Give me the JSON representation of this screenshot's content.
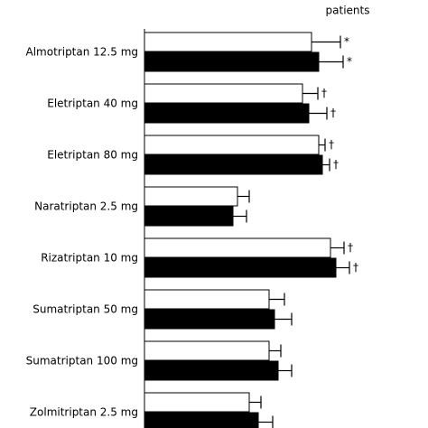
{
  "chart_data": {
    "type": "hbar",
    "subtitle": "patients",
    "categories": [
      "Almotriptan 12.5 mg",
      "Eletriptan 40 mg",
      "Eletriptan 80 mg",
      "Naratriptan 2.5 mg",
      "Rizatriptan 10 mg",
      "Sumatriptan 50 mg",
      "Sumatriptan 100 mg",
      "Zolmitriptan 2.5 mg"
    ],
    "xlim": [
      0,
      314
    ],
    "series": [
      {
        "color": "#ffffff",
        "values": [
          185,
          175,
          193,
          103,
          206,
          138,
          138,
          116
        ],
        "errors": [
          32,
          17,
          7,
          13,
          15,
          17,
          13,
          13
        ],
        "markers": [
          "*",
          "†",
          "†",
          null,
          "†",
          null,
          null,
          null
        ]
      },
      {
        "color": "#000000",
        "values": [
          193,
          182,
          197,
          98,
          212,
          144,
          148,
          126
        ],
        "errors": [
          27,
          20,
          8,
          15,
          15,
          19,
          15,
          16
        ],
        "markers": [
          "*",
          "†",
          "†",
          null,
          "†",
          null,
          null,
          null
        ]
      }
    ]
  }
}
